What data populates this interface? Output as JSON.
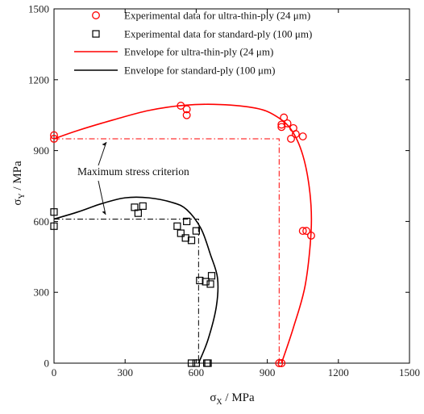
{
  "chart_data": {
    "type": "scatter",
    "xlabel_main": "σ",
    "xlabel_sub": "X",
    "xlabel_unit": " / MPa",
    "ylabel_main": "σ",
    "ylabel_sub": "Y",
    "ylabel_unit": " / MPa",
    "xlim": [
      0,
      1500
    ],
    "ylim": [
      0,
      1500
    ],
    "xticks": [
      0,
      300,
      600,
      900,
      1200,
      1500
    ],
    "yticks": [
      0,
      300,
      600,
      900,
      1200,
      1500
    ],
    "xtick_labels": [
      "0",
      "300",
      "600",
      "900",
      "1200",
      "1500"
    ],
    "ytick_labels": [
      "0",
      "300",
      "600",
      "900",
      "1200",
      "1500"
    ],
    "grid": false,
    "legend_position": "top-center",
    "colors": {
      "ultra": "#ff0000",
      "standard": "#000000"
    },
    "series": [
      {
        "name": "Experimental data for ultra-thin-ply (24 μm)",
        "kind": "points",
        "marker": "circle",
        "color": "#ff0000",
        "x": [
          0,
          0,
          535,
          560,
          560,
          960,
          970,
          960,
          985,
          1000,
          1010,
          1020,
          1050,
          1050,
          1065,
          1085,
          950,
          960
        ],
        "y": [
          950,
          965,
          1090,
          1075,
          1050,
          1000,
          1040,
          1010,
          1015,
          950,
          995,
          970,
          960,
          560,
          560,
          540,
          0,
          0
        ]
      },
      {
        "name": "Experimental data for standard-ply (100 μm)",
        "kind": "points",
        "marker": "square",
        "color": "#000000",
        "x": [
          0,
          0,
          340,
          355,
          375,
          520,
          535,
          555,
          560,
          580,
          600,
          615,
          640,
          660,
          665,
          580,
          600,
          645,
          650
        ],
        "y": [
          640,
          580,
          660,
          635,
          665,
          580,
          550,
          530,
          600,
          520,
          560,
          350,
          345,
          335,
          370,
          0,
          0,
          0,
          0
        ]
      },
      {
        "name": "Envelope for ultra-thin-ply (24 μm)",
        "kind": "curve",
        "color": "#ff0000",
        "x": [
          0,
          100,
          250,
          400,
          550,
          700,
          850,
          930,
          1000,
          1050,
          1080,
          1085,
          1060,
          1010,
          960
        ],
        "y": [
          950,
          985,
          1030,
          1070,
          1092,
          1095,
          1080,
          1050,
          990,
          880,
          720,
          560,
          330,
          150,
          0
        ]
      },
      {
        "name": "Envelope for standard-ply (100 μm)",
        "kind": "curve",
        "color": "#000000",
        "x": [
          0,
          100,
          200,
          300,
          400,
          500,
          560,
          620,
          660,
          690,
          685,
          650,
          610
        ],
        "y": [
          610,
          640,
          675,
          700,
          700,
          680,
          650,
          570,
          460,
          360,
          240,
          100,
          0
        ]
      }
    ],
    "annotations": {
      "criterion_label": "Maximum stress criterion",
      "max_stress_ultra": {
        "x": 950,
        "y": 950
      },
      "max_stress_standard": {
        "x": 610,
        "y": 610
      }
    }
  }
}
